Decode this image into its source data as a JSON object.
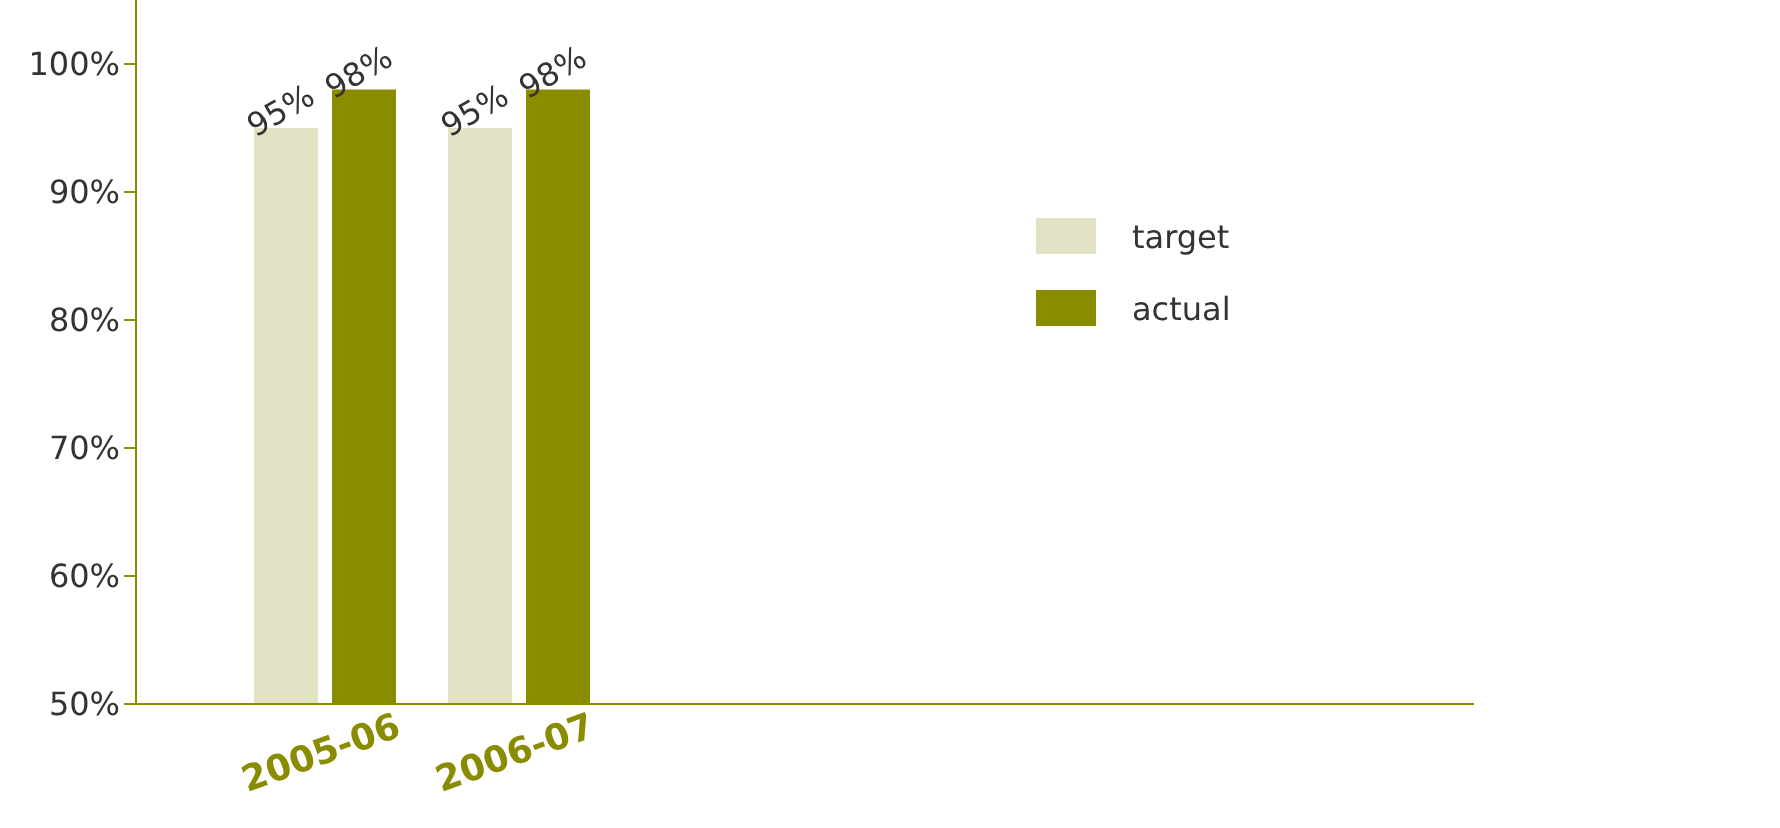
{
  "chart_data": {
    "type": "bar",
    "categories": [
      "2005-06",
      "2006-07"
    ],
    "series": [
      {
        "name": "target",
        "color": "#e3e2c4",
        "values": [
          95,
          95
        ],
        "value_labels": [
          "95%",
          "95%"
        ]
      },
      {
        "name": "actual",
        "color": "#8a8c00",
        "values": [
          98,
          98
        ],
        "value_labels": [
          "98%",
          "98%"
        ]
      }
    ],
    "ylim": [
      50,
      105
    ],
    "yticks": [
      {
        "value": 50,
        "label": "50%"
      },
      {
        "value": 60,
        "label": "60%"
      },
      {
        "value": 70,
        "label": "70%"
      },
      {
        "value": 80,
        "label": "80%"
      },
      {
        "value": 90,
        "label": "90%"
      },
      {
        "value": 100,
        "label": "100%"
      }
    ],
    "grid": false,
    "legend": "right"
  }
}
